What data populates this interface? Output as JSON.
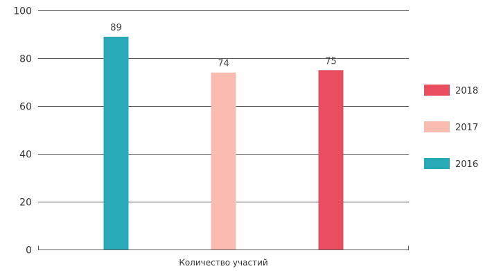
{
  "chart_data": {
    "type": "bar",
    "categories": [
      "Количество участий"
    ],
    "series": [
      {
        "name": "2016",
        "values": [
          89
        ],
        "color": "#27aab5"
      },
      {
        "name": "2017",
        "values": [
          74
        ],
        "color": "#fabbb0"
      },
      {
        "name": "2018",
        "values": [
          75
        ],
        "color": "#e84e5f"
      }
    ],
    "legend_order": [
      "2018",
      "2017",
      "2016"
    ],
    "y_ticks": [
      "0",
      "20",
      "40",
      "60",
      "80",
      "100"
    ],
    "ylim": [
      0,
      100
    ],
    "grid": true,
    "legend_position": "right",
    "show_data_labels": true
  }
}
